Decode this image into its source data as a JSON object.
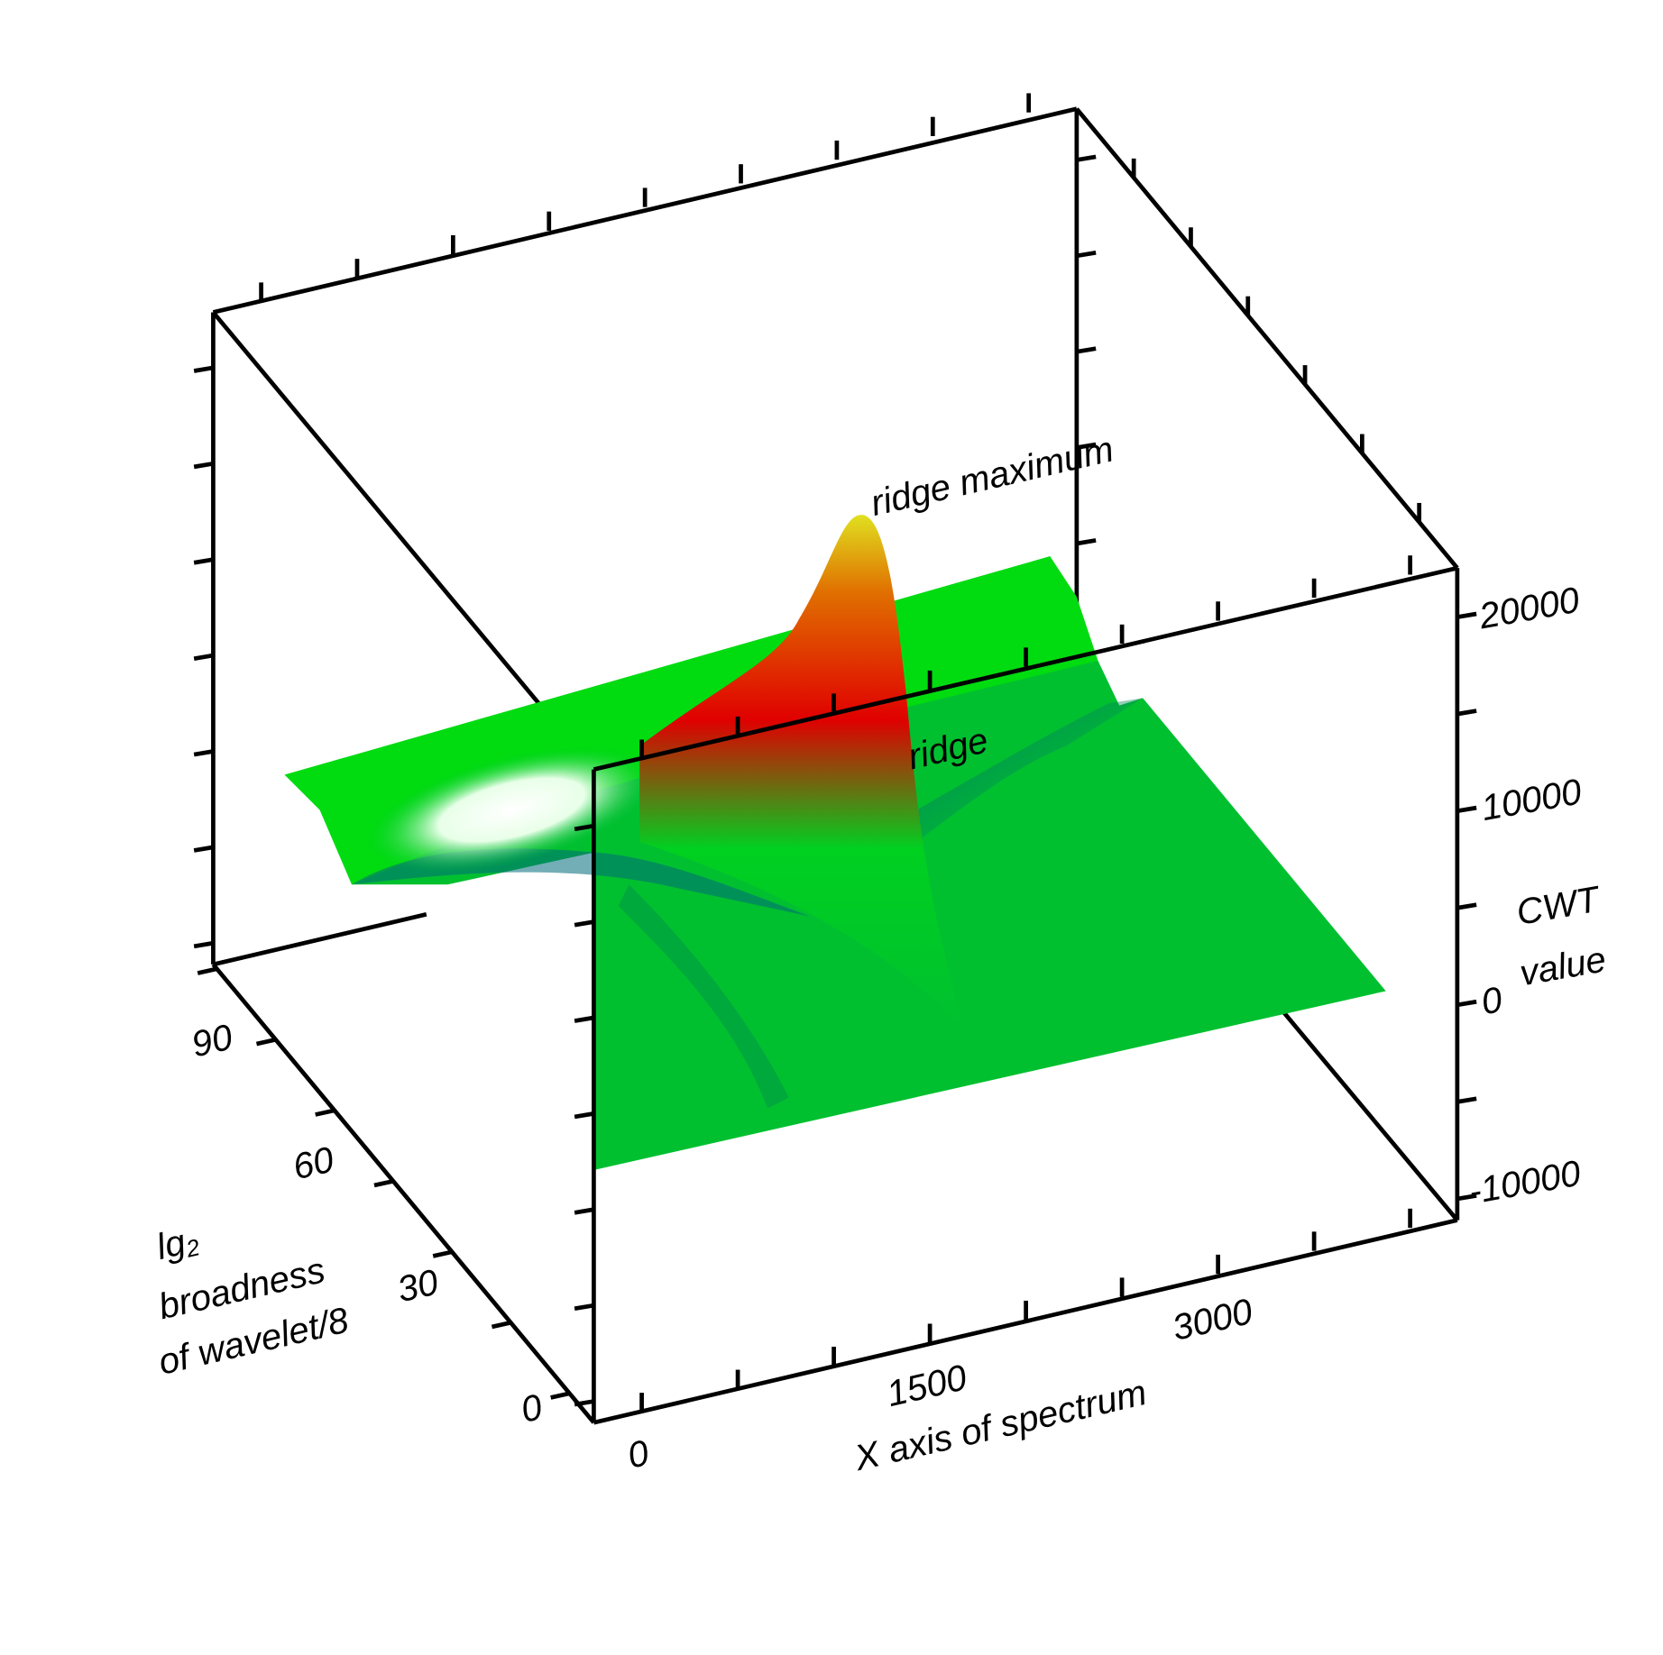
{
  "chart_data": {
    "type": "surface",
    "x_axis": {
      "label": "X axis of spectrum",
      "ticks": [
        "0",
        "1500",
        "3000"
      ]
    },
    "y_axis": {
      "label_line1": "lg",
      "label_sub": "2",
      "label_line2": "broadness",
      "label_line3": "of wavelet/8",
      "ticks": [
        "0",
        "30",
        "60",
        "90"
      ]
    },
    "z_axis": {
      "label_line1": "CWT",
      "label_line2": "value",
      "ticks": [
        "-10000",
        "0",
        "10000",
        "20000"
      ],
      "range": [
        -10000,
        20000
      ]
    },
    "annotations": {
      "peak": "ridge maximum",
      "ridge": "ridge"
    },
    "colors": {
      "surface_base": "#00c030",
      "peak_mid": "#e00000",
      "peak_top": "#e0e020",
      "valley": "#006a7a",
      "highlight": "#ffffff"
    }
  }
}
